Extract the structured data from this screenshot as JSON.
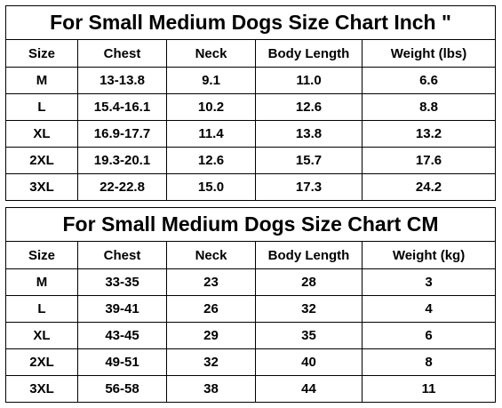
{
  "tables": [
    {
      "title": "For Small Medium Dogs Size Chart Inch \"",
      "headers": [
        "Size",
        "Chest",
        "Neck",
        "Body Length",
        "Weight (lbs)"
      ],
      "rows": [
        [
          "M",
          "13-13.8",
          "9.1",
          "11.0",
          "6.6"
        ],
        [
          "L",
          "15.4-16.1",
          "10.2",
          "12.6",
          "8.8"
        ],
        [
          "XL",
          "16.9-17.7",
          "11.4",
          "13.8",
          "13.2"
        ],
        [
          "2XL",
          "19.3-20.1",
          "12.6",
          "15.7",
          "17.6"
        ],
        [
          "3XL",
          "22-22.8",
          "15.0",
          "17.3",
          "24.2"
        ]
      ]
    },
    {
      "title": "For Small Medium Dogs Size Chart CM",
      "headers": [
        "Size",
        "Chest",
        "Neck",
        "Body Length",
        "Weight (kg)"
      ],
      "rows": [
        [
          "M",
          "33-35",
          "23",
          "28",
          "3"
        ],
        [
          "L",
          "39-41",
          "26",
          "32",
          "4"
        ],
        [
          "XL",
          "43-45",
          "29",
          "35",
          "6"
        ],
        [
          "2XL",
          "49-51",
          "32",
          "40",
          "8"
        ],
        [
          "3XL",
          "56-58",
          "38",
          "44",
          "11"
        ]
      ]
    }
  ]
}
